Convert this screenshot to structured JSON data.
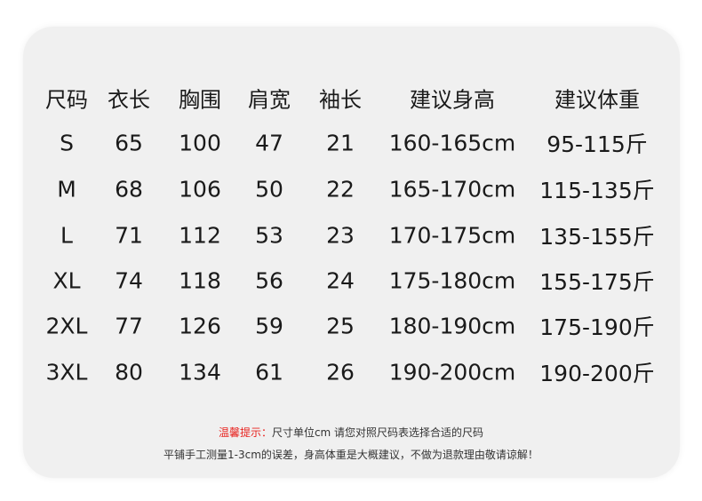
{
  "headers": [
    "尺码",
    "衣长",
    "胸围",
    "肩宽",
    "袖长",
    "建议身高",
    "建议体重"
  ],
  "rows": [
    [
      "S",
      "65",
      "100",
      "47",
      "21",
      "160-165cm",
      "95-115斤"
    ],
    [
      "M",
      "68",
      "106",
      "50",
      "22",
      "165-170cm",
      "115-135斤"
    ],
    [
      "L",
      "71",
      "112",
      "53",
      "23",
      "170-175cm",
      "135-155斤"
    ],
    [
      "XL",
      "74",
      "118",
      "56",
      "24",
      "175-180cm",
      "155-175斤"
    ],
    [
      "2XL",
      "77",
      "126",
      "59",
      "25",
      "180-190cm",
      "175-190斤"
    ],
    [
      "3XL",
      "80",
      "134",
      "61",
      "26",
      "190-200cm",
      "190-200斤"
    ]
  ],
  "notes": {
    "tip_label": "温馨提示：",
    "tip_text": "尺寸单位cm 请您对照尺码表选择合适的尺码",
    "disclaimer": "平铺手工测量1-3cm的误差，身高体重是大概建议，不做为退款理由敬请谅解！"
  },
  "colors": {
    "card_bg": "#f0f0f0",
    "tip_label": "#e8231f"
  }
}
